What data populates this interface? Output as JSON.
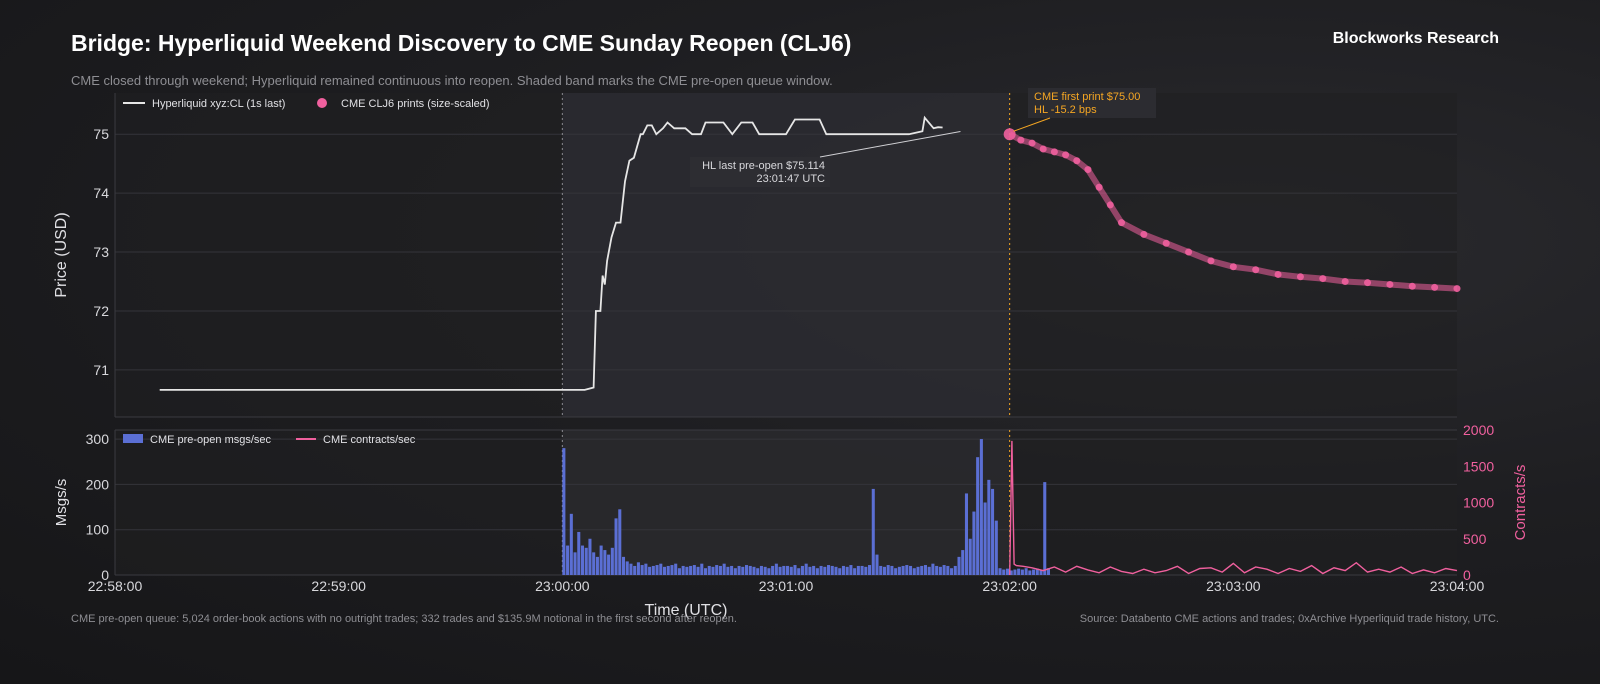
{
  "header": {
    "title": "Bridge: Hyperliquid Weekend Discovery to CME Sunday Reopen (CLJ6)",
    "brand": "Blockworks Research",
    "subtitle": "CME closed through weekend; Hyperliquid remained continuous into reopen. Shaded band marks the CME pre-open queue window."
  },
  "footer": {
    "left": "CME pre-open queue: 5,024 order-book actions with no outright trades; 332 trades and $135.9M notional in the first second after reopen.",
    "right": "Source: Databento CME actions and trades; 0xArchive Hyperliquid trade history, UTC."
  },
  "colors": {
    "hl_line": "#e6e6e6",
    "cme_points": "#f0609e",
    "bars": "#5b6fd4",
    "vline": "#f5a623",
    "band": "#2c2c31"
  },
  "chart_data": [
    {
      "type": "line",
      "panel": "price",
      "ylabel": "Price (USD)",
      "ylim": [
        70.2,
        75.7
      ],
      "yticks": [
        71,
        72,
        73,
        74,
        75
      ],
      "x_unit": "minutes after 22:58:00",
      "xlim": [
        0,
        6
      ],
      "legend": {
        "hl": "Hyperliquid xyz:CL (1s last)",
        "cme": "CME CLJ6 prints (size-scaled)"
      },
      "shaded_window": [
        2,
        4
      ],
      "reopen_x": 4,
      "series": [
        {
          "name": "Hyperliquid xyz:CL (1s last)",
          "x": [
            0.2,
            2.1,
            2.14,
            2.15,
            2.16,
            2.17,
            2.18,
            2.19,
            2.2,
            2.22,
            2.24,
            2.26,
            2.28,
            2.3,
            2.32,
            2.35,
            2.36,
            2.38,
            2.4,
            2.42,
            2.45,
            2.47,
            2.5,
            2.55,
            2.58,
            2.62,
            2.64,
            2.68,
            2.72,
            2.76,
            2.8,
            2.85,
            2.88,
            3.0,
            3.04,
            3.15,
            3.18,
            3.28,
            3.4,
            3.55,
            3.61,
            3.62,
            3.66,
            3.68,
            3.7
          ],
          "y": [
            70.66,
            70.66,
            70.7,
            72.0,
            72.0,
            72.0,
            72.6,
            72.45,
            72.85,
            73.25,
            73.5,
            73.5,
            74.2,
            74.55,
            74.6,
            75.0,
            75.0,
            75.15,
            75.15,
            75.0,
            75.1,
            75.2,
            75.1,
            75.1,
            75.0,
            75.0,
            75.2,
            75.2,
            75.2,
            75.0,
            75.2,
            75.2,
            75.0,
            75.0,
            75.25,
            75.25,
            75.0,
            75.0,
            75.0,
            75.0,
            75.05,
            75.28,
            75.1,
            75.12,
            75.114
          ]
        },
        {
          "name": "CME CLJ6 prints (size-scaled)",
          "x": [
            4.0,
            4.05,
            4.1,
            4.15,
            4.2,
            4.25,
            4.3,
            4.35,
            4.4,
            4.45,
            4.5,
            4.6,
            4.7,
            4.8,
            4.9,
            5.0,
            5.1,
            5.2,
            5.3,
            5.4,
            5.5,
            5.6,
            5.7,
            5.8,
            5.9,
            6.0
          ],
          "y": [
            75.0,
            74.9,
            74.85,
            74.75,
            74.7,
            74.65,
            74.55,
            74.4,
            74.1,
            73.8,
            73.5,
            73.3,
            73.15,
            73.0,
            72.85,
            72.75,
            72.7,
            72.62,
            72.58,
            72.55,
            72.5,
            72.48,
            72.45,
            72.42,
            72.4,
            72.38
          ]
        }
      ],
      "annotations": {
        "hl_last": {
          "line1": "HL last pre-open $75.114",
          "line2": "23:01:47 UTC",
          "x": 3.78,
          "y": 75.114
        },
        "cme_first": {
          "line1": "CME first print $75.00",
          "line2": "HL -15.2 bps",
          "x": 4.0,
          "y": 75.0
        }
      }
    },
    {
      "type": "bar",
      "panel": "queue",
      "ylabel": "Msgs/s",
      "y2label": "Contracts/s",
      "xlabel": "Time (UTC)",
      "xtick_labels": [
        "22:58:00",
        "22:59:00",
        "23:00:00",
        "23:01:00",
        "23:02:00",
        "23:03:00",
        "23:04:00"
      ],
      "ylim": [
        0,
        320
      ],
      "yticks": [
        0,
        100,
        200,
        300
      ],
      "y2lim": [
        0,
        2000
      ],
      "y2ticks": [
        0,
        500,
        1000,
        1500,
        2000
      ],
      "legend": {
        "bars": "CME pre-open msgs/sec",
        "line": "CME contracts/sec"
      },
      "bars_start_minute": 2,
      "bars_step_minute": 0.016667,
      "bars_values": [
        280,
        65,
        135,
        50,
        95,
        65,
        60,
        80,
        50,
        40,
        65,
        55,
        45,
        60,
        125,
        145,
        40,
        30,
        25,
        20,
        28,
        22,
        25,
        18,
        20,
        22,
        25,
        18,
        20,
        22,
        25,
        15,
        20,
        18,
        20,
        22,
        18,
        25,
        15,
        20,
        18,
        22,
        20,
        25,
        18,
        20,
        15,
        20,
        18,
        22,
        20,
        18,
        15,
        20,
        18,
        15,
        20,
        25,
        18,
        20,
        20,
        18,
        22,
        15,
        20,
        25,
        18,
        20,
        15,
        20,
        18,
        22,
        20,
        18,
        15,
        20,
        18,
        22,
        15,
        20,
        20,
        18,
        22,
        190,
        45,
        20,
        18,
        22,
        20,
        15,
        18,
        20,
        22,
        20,
        15,
        18,
        20,
        22,
        18,
        25,
        20,
        18,
        22,
        20,
        15,
        20,
        40,
        55,
        180,
        80,
        140,
        260,
        300,
        160,
        210,
        190,
        120,
        15,
        12,
        14,
        10,
        12,
        14,
        12,
        15,
        10,
        12,
        14,
        12,
        205,
        15
      ],
      "contracts_x": [
        4.0,
        4.01,
        4.02,
        4.03,
        4.06,
        4.1,
        4.15,
        4.2,
        4.25,
        4.3,
        4.35,
        4.4,
        4.45,
        4.5,
        4.55,
        4.6,
        4.65,
        4.7,
        4.75,
        4.8,
        4.85,
        4.9,
        4.95,
        5.0,
        5.05,
        5.1,
        5.15,
        5.2,
        5.25,
        5.3,
        5.35,
        5.4,
        5.45,
        5.5,
        5.55,
        5.6,
        5.65,
        5.7,
        5.75,
        5.8,
        5.85,
        5.9,
        5.95,
        6.0
      ],
      "contracts_y": [
        0,
        1850,
        150,
        130,
        120,
        100,
        60,
        110,
        40,
        120,
        70,
        30,
        110,
        50,
        20,
        80,
        30,
        60,
        120,
        20,
        90,
        100,
        40,
        160,
        30,
        110,
        80,
        20,
        90,
        50,
        130,
        20,
        100,
        60,
        170,
        40,
        80,
        40,
        110,
        20,
        70,
        30,
        90,
        60
      ]
    }
  ]
}
